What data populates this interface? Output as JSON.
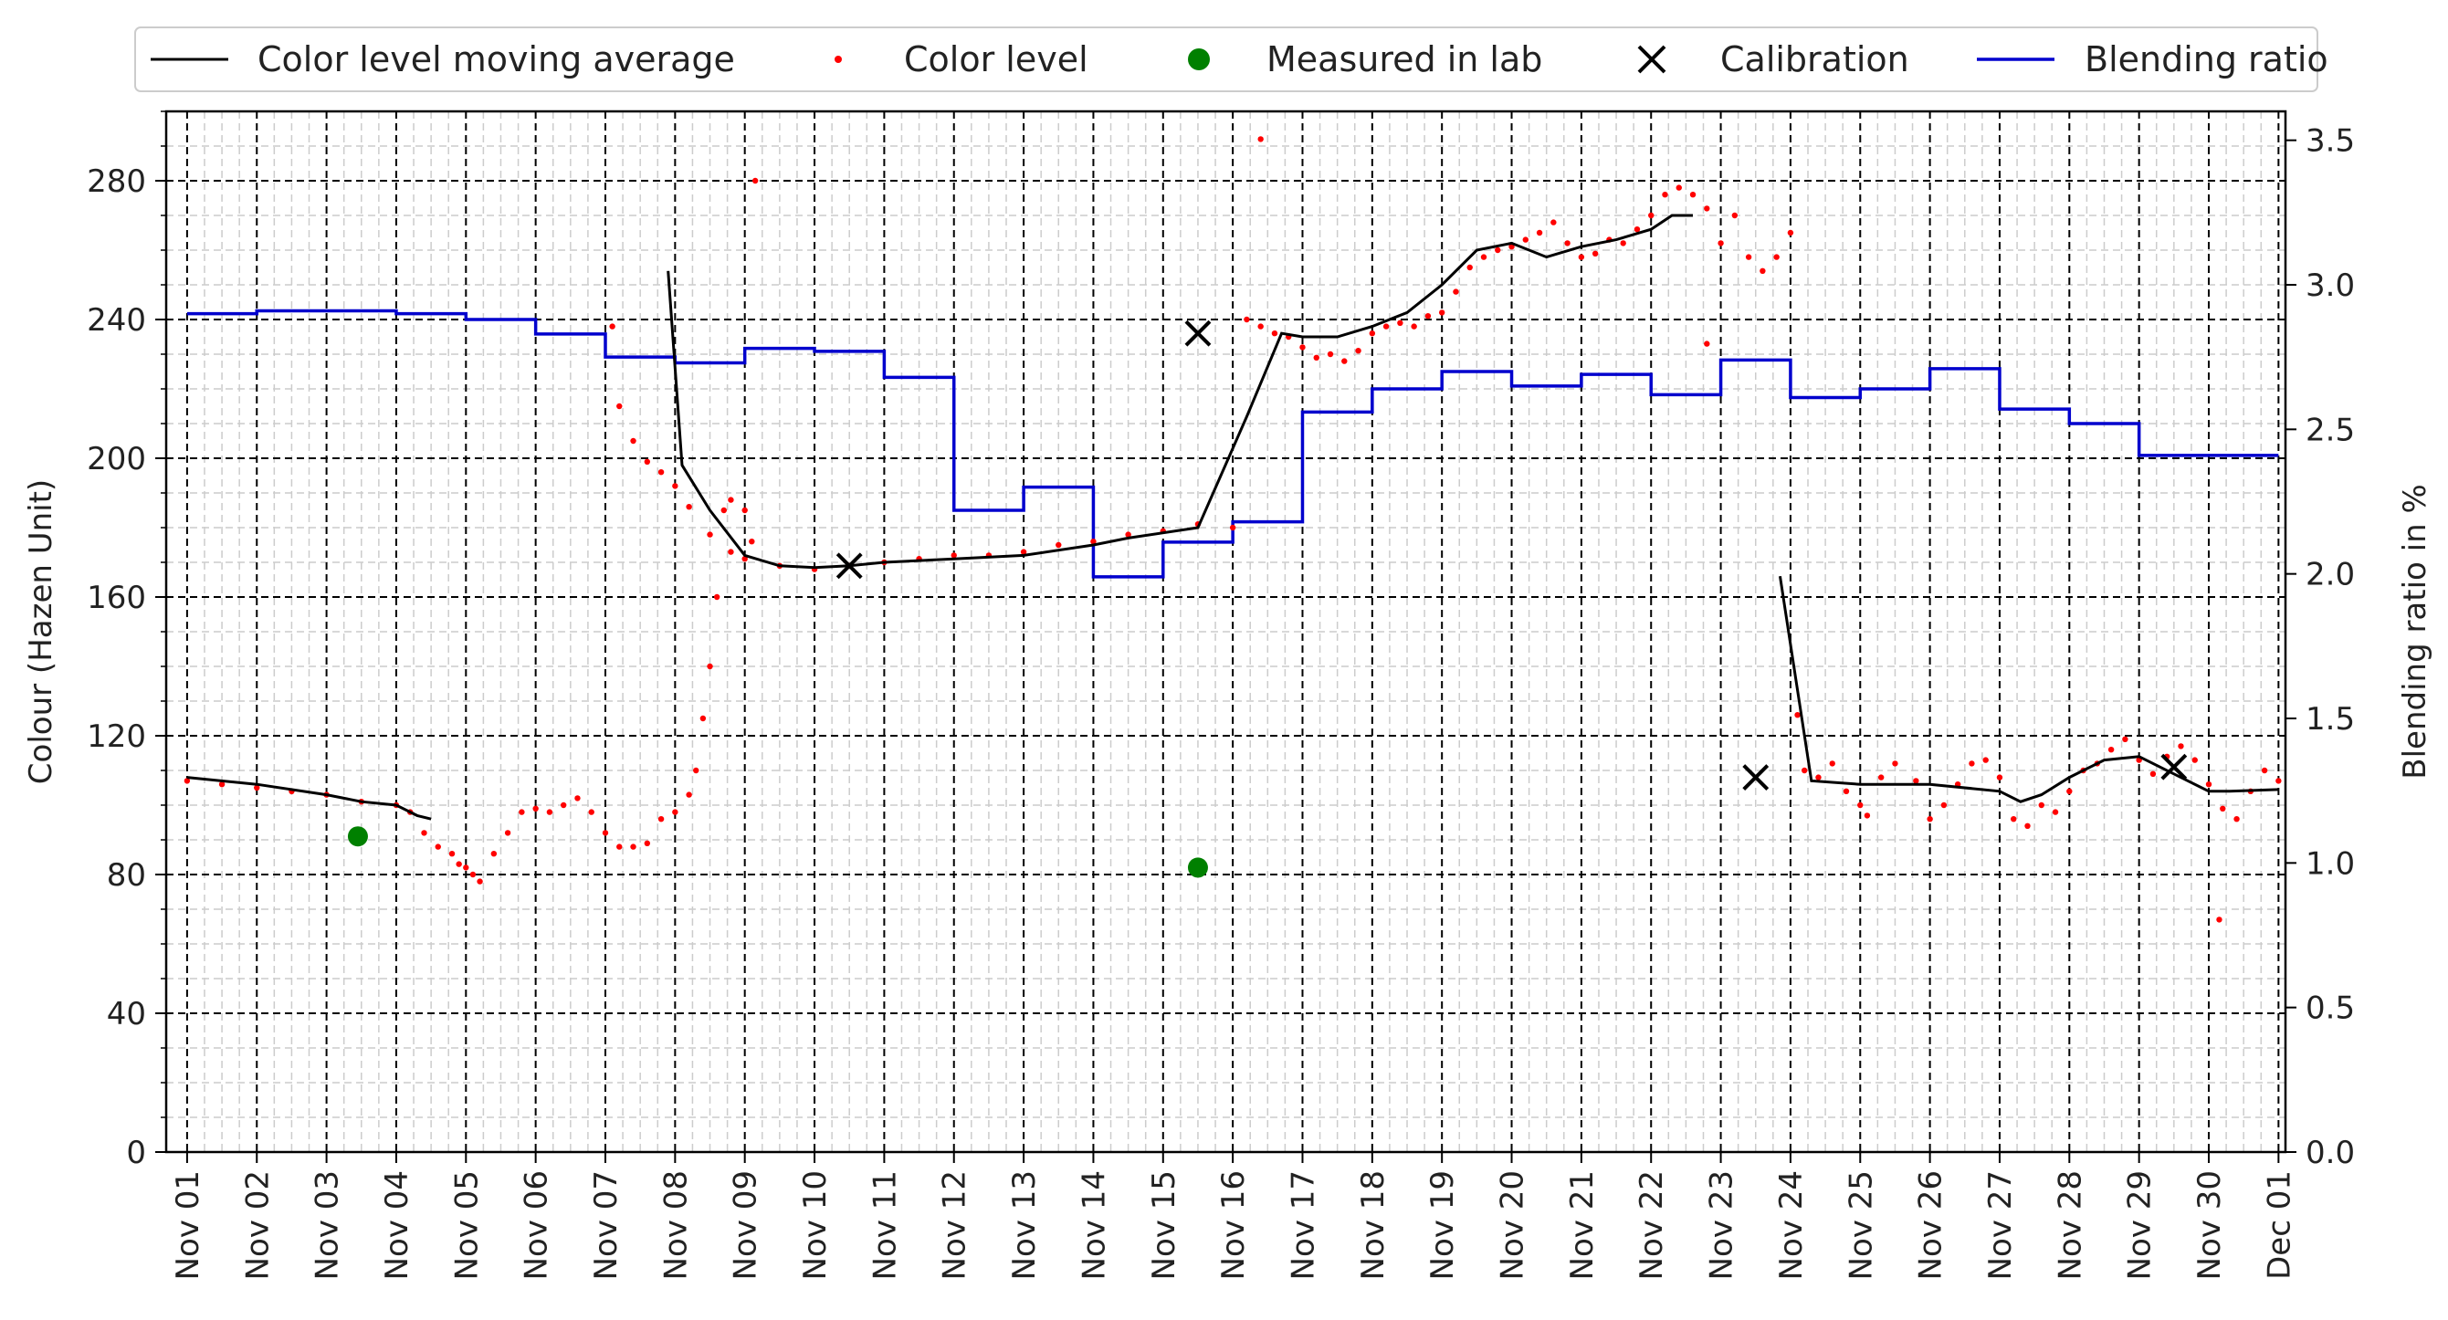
{
  "chart_data": {
    "type": "line",
    "ylabel": "Colour (Hazen Unit)",
    "y2label": "Blending ratio in %",
    "ylim": [
      0,
      300
    ],
    "y2lim": [
      0,
      3.6
    ],
    "xlim": [
      -0.3,
      30.1
    ],
    "grid": true,
    "legend_position": "top",
    "categories": [
      "Nov 01",
      "Nov 02",
      "Nov 03",
      "Nov 04",
      "Nov 05",
      "Nov 06",
      "Nov 07",
      "Nov 08",
      "Nov 09",
      "Nov 10",
      "Nov 11",
      "Nov 12",
      "Nov 13",
      "Nov 14",
      "Nov 15",
      "Nov 16",
      "Nov 17",
      "Nov 18",
      "Nov 19",
      "Nov 20",
      "Nov 21",
      "Nov 22",
      "Nov 23",
      "Nov 24",
      "Nov 25",
      "Nov 26",
      "Nov 27",
      "Nov 28",
      "Nov 29",
      "Nov 30",
      "Dec 01"
    ],
    "yticks": [
      0,
      40,
      80,
      120,
      160,
      200,
      240,
      280
    ],
    "y2ticks": [
      "0.0",
      "0.5",
      "1.0",
      "1.5",
      "2.0",
      "2.5",
      "3.0",
      "3.5"
    ],
    "colors": {
      "moving_average": "#000000",
      "color_level": "#ff0000",
      "lab": "#008000",
      "calibration": "#000000",
      "blending": "#0000cd"
    },
    "legend": [
      "Color level moving average",
      "Color level",
      "Measured in lab",
      "Calibration",
      "Blending ratio"
    ],
    "series": [
      {
        "name": "Color level moving average",
        "type": "line",
        "axis": "left",
        "segments": [
          [
            [
              0,
              108
            ],
            [
              1,
              106
            ],
            [
              2,
              103
            ],
            [
              2.5,
              101
            ],
            [
              3,
              100
            ],
            [
              3.3,
              97
            ],
            [
              3.5,
              96
            ]
          ],
          [
            [
              6.9,
              254
            ],
            [
              7.1,
              198
            ],
            [
              7.5,
              185
            ],
            [
              8,
              172
            ],
            [
              8.5,
              169
            ],
            [
              9,
              168.5
            ],
            [
              9.5,
              169
            ],
            [
              10,
              170
            ],
            [
              11,
              171
            ],
            [
              12,
              172
            ],
            [
              13,
              175
            ],
            [
              13.5,
              177
            ],
            [
              14.5,
              180
            ],
            [
              15.2,
              212
            ],
            [
              15.7,
              236
            ],
            [
              16,
              235
            ],
            [
              16.5,
              235
            ],
            [
              17,
              238
            ],
            [
              17.5,
              242
            ],
            [
              18,
              250
            ],
            [
              18.5,
              260
            ],
            [
              19,
              262
            ],
            [
              19.5,
              258
            ],
            [
              20,
              261
            ],
            [
              20.5,
              263
            ],
            [
              21,
              266
            ],
            [
              21.3,
              270
            ],
            [
              21.6,
              270
            ]
          ],
          [
            [
              22.85,
              166
            ],
            [
              23.3,
              107
            ],
            [
              24,
              106
            ],
            [
              25,
              106
            ],
            [
              26,
              104
            ],
            [
              26.3,
              101
            ],
            [
              26.6,
              103
            ],
            [
              27,
              108
            ],
            [
              27.5,
              113
            ],
            [
              28,
              114
            ],
            [
              28.5,
              109
            ],
            [
              29,
              104
            ],
            [
              29.3,
              104
            ],
            [
              30,
              104.5
            ]
          ]
        ]
      },
      {
        "name": "Color level",
        "type": "scatter",
        "axis": "left",
        "segments": [
          [
            [
              0,
              107
            ],
            [
              0.5,
              106
            ],
            [
              1,
              105
            ],
            [
              1.5,
              104
            ],
            [
              2,
              103
            ],
            [
              2.5,
              101
            ],
            [
              3,
              100
            ],
            [
              3.2,
              98
            ],
            [
              3.4,
              92
            ],
            [
              3.6,
              88
            ],
            [
              3.8,
              86
            ],
            [
              3.9,
              83
            ],
            [
              4,
              82
            ],
            [
              4.1,
              80
            ],
            [
              4.2,
              78
            ],
            [
              4.4,
              86
            ],
            [
              4.6,
              92
            ],
            [
              4.8,
              98
            ],
            [
              5,
              99
            ],
            [
              5.2,
              98
            ],
            [
              5.4,
              100
            ],
            [
              5.6,
              102
            ],
            [
              5.8,
              98
            ],
            [
              6,
              92
            ],
            [
              6.2,
              88
            ],
            [
              6.4,
              88
            ],
            [
              6.6,
              89
            ],
            [
              6.8,
              96
            ],
            [
              7,
              98
            ],
            [
              7.2,
              103
            ],
            [
              7.3,
              110
            ],
            [
              7.4,
              125
            ],
            [
              7.5,
              140
            ],
            [
              7.6,
              160
            ],
            [
              7.7,
              185
            ],
            [
              7.8,
              188
            ],
            [
              8,
              185
            ],
            [
              8.1,
              176
            ],
            [
              8.15,
              280
            ]
          ],
          [
            [
              6.1,
              238
            ],
            [
              6.2,
              215
            ],
            [
              6.4,
              205
            ],
            [
              6.6,
              199
            ],
            [
              6.8,
              196
            ],
            [
              7,
              192
            ],
            [
              7.2,
              186
            ],
            [
              7.5,
              178
            ],
            [
              7.8,
              173
            ],
            [
              8,
              171
            ],
            [
              8.5,
              169
            ],
            [
              9,
              168
            ],
            [
              9.5,
              169
            ],
            [
              10,
              170
            ],
            [
              10.5,
              171
            ],
            [
              11,
              172
            ],
            [
              11.5,
              172
            ],
            [
              12,
              173
            ],
            [
              12.5,
              175
            ],
            [
              13,
              176
            ],
            [
              13.5,
              178
            ],
            [
              14,
              179
            ],
            [
              14.5,
              181
            ],
            [
              15,
              180
            ],
            [
              15.2,
              240
            ],
            [
              15.4,
              238
            ],
            [
              15.6,
              236
            ],
            [
              15.8,
              235
            ],
            [
              16,
              232
            ],
            [
              16.2,
              229
            ],
            [
              16.4,
              230
            ],
            [
              16.6,
              228
            ],
            [
              16.8,
              231
            ],
            [
              17,
              236
            ],
            [
              17.2,
              238
            ],
            [
              17.4,
              239
            ],
            [
              17.6,
              238
            ],
            [
              17.8,
              241
            ],
            [
              18,
              242
            ],
            [
              18.2,
              248
            ],
            [
              18.4,
              255
            ],
            [
              18.6,
              258
            ],
            [
              18.8,
              260
            ],
            [
              19,
              261
            ],
            [
              19.2,
              263
            ],
            [
              19.4,
              265
            ],
            [
              19.6,
              268
            ],
            [
              19.8,
              262
            ],
            [
              20,
              258
            ],
            [
              20.2,
              259
            ],
            [
              20.4,
              263
            ],
            [
              20.6,
              262
            ],
            [
              20.8,
              266
            ],
            [
              21,
              270
            ],
            [
              21.2,
              276
            ],
            [
              21.4,
              278
            ],
            [
              21.6,
              276
            ],
            [
              21.8,
              272
            ],
            [
              22,
              262
            ],
            [
              22.2,
              270
            ],
            [
              22.4,
              258
            ],
            [
              22.6,
              254
            ],
            [
              22.8,
              258
            ],
            [
              23,
              265
            ]
          ],
          [
            [
              15.4,
              292
            ],
            [
              21.8,
              233
            ]
          ],
          [
            [
              23.1,
              126
            ],
            [
              23.2,
              110
            ],
            [
              23.4,
              108
            ],
            [
              23.6,
              112
            ],
            [
              23.8,
              104
            ],
            [
              24,
              100
            ],
            [
              24.1,
              97
            ],
            [
              24.3,
              108
            ],
            [
              24.5,
              112
            ],
            [
              24.8,
              107
            ],
            [
              25,
              96
            ],
            [
              25.2,
              100
            ],
            [
              25.4,
              106
            ],
            [
              25.6,
              112
            ],
            [
              25.8,
              113
            ],
            [
              26,
              108
            ],
            [
              26.2,
              96
            ],
            [
              26.4,
              94
            ],
            [
              26.6,
              100
            ],
            [
              26.8,
              98
            ],
            [
              27,
              104
            ],
            [
              27.2,
              110
            ],
            [
              27.4,
              112
            ],
            [
              27.6,
              116
            ],
            [
              27.8,
              119
            ],
            [
              28,
              113
            ],
            [
              28.2,
              109
            ],
            [
              28.4,
              114
            ],
            [
              28.6,
              117
            ],
            [
              28.8,
              113
            ],
            [
              29,
              106
            ],
            [
              29.2,
              99
            ],
            [
              29.4,
              96
            ],
            [
              29.6,
              104
            ],
            [
              29.8,
              110
            ],
            [
              30,
              107
            ],
            [
              29.15,
              67
            ]
          ]
        ]
      },
      {
        "name": "Measured in lab",
        "type": "scatter",
        "axis": "left",
        "points": [
          [
            2.45,
            91
          ],
          [
            14.5,
            82
          ]
        ]
      },
      {
        "name": "Calibration",
        "type": "scatter",
        "axis": "left",
        "points": [
          [
            9.5,
            169
          ],
          [
            14.5,
            236
          ],
          [
            22.5,
            108
          ],
          [
            28.5,
            111
          ]
        ]
      },
      {
        "name": "Blending ratio",
        "type": "step",
        "axis": "right",
        "values": [
          [
            0,
            2.9
          ],
          [
            1,
            2.91
          ],
          [
            3,
            2.9
          ],
          [
            4,
            2.88
          ],
          [
            5,
            2.83
          ],
          [
            6,
            2.75
          ],
          [
            7,
            2.73
          ],
          [
            8,
            2.78
          ],
          [
            9,
            2.77
          ],
          [
            10,
            2.68
          ],
          [
            11,
            2.22
          ],
          [
            12,
            2.3
          ],
          [
            13,
            1.99
          ],
          [
            14,
            2.11
          ],
          [
            15,
            2.18
          ],
          [
            16,
            2.56
          ],
          [
            17,
            2.64
          ],
          [
            18,
            2.7
          ],
          [
            19,
            2.65
          ],
          [
            20,
            2.69
          ],
          [
            21,
            2.62
          ],
          [
            22,
            2.74
          ],
          [
            23,
            2.61
          ],
          [
            24,
            2.64
          ],
          [
            25,
            2.71
          ],
          [
            26,
            2.57
          ],
          [
            27,
            2.52
          ],
          [
            28,
            2.41
          ],
          [
            29.0,
            2.41
          ],
          [
            30,
            2.41
          ]
        ]
      }
    ]
  }
}
